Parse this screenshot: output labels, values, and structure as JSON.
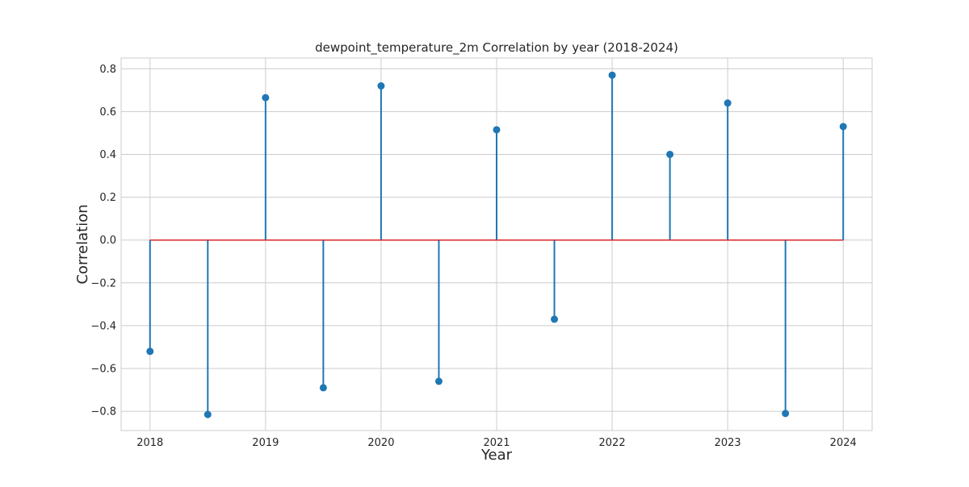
{
  "chart_data": {
    "type": "stem",
    "title": "dewpoint_temperature_2m Correlation by year (2018-2024)",
    "xlabel": "Year",
    "ylabel": "Correlation",
    "xlim": [
      2017.75,
      2024.25
    ],
    "ylim": [
      -0.89,
      0.85
    ],
    "x_ticks": [
      2018,
      2019,
      2020,
      2021,
      2022,
      2023,
      2024
    ],
    "y_ticks": [
      -0.8,
      -0.6,
      -0.4,
      -0.2,
      0.0,
      0.2,
      0.4,
      0.6,
      0.8
    ],
    "x_tick_labels": [
      "2018",
      "2019",
      "2020",
      "2021",
      "2022",
      "2023",
      "2024"
    ],
    "y_tick_labels": [
      "−0.8",
      "−0.6",
      "−0.4",
      "−0.2",
      "0.0",
      "0.2",
      "0.4",
      "0.6",
      "0.8"
    ],
    "grid": true,
    "baseline": 0.0,
    "series": [
      {
        "x": [
          2018.0,
          2018.5,
          2019.0,
          2019.5,
          2020.0,
          2020.5,
          2021.0,
          2021.5,
          2022.0,
          2022.5,
          2023.0,
          2023.5,
          2024.0
        ],
        "y": [
          -0.52,
          -0.815,
          0.665,
          -0.69,
          0.72,
          -0.66,
          0.515,
          -0.37,
          0.77,
          0.4,
          0.64,
          -0.81,
          0.53
        ],
        "color": "#1f77b4"
      }
    ],
    "baseline_color": "#d62728",
    "grid_color": "#cccccc"
  }
}
